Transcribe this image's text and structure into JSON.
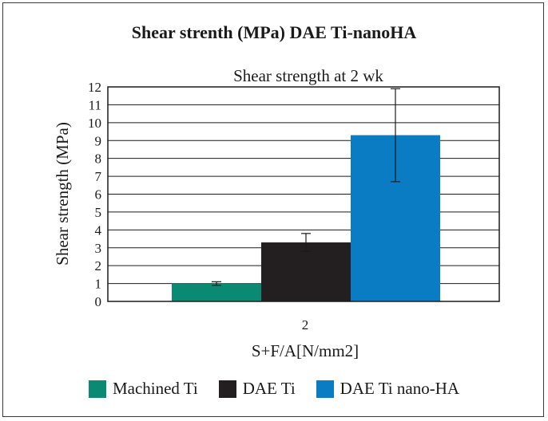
{
  "page": {
    "heading": "Shear strenth (MPa) DAE Ti-nanoHA"
  },
  "colors": {
    "machined": "#0a8a72",
    "dae": "#231f20",
    "nanoha": "#0a7cc4"
  },
  "chart_data": {
    "type": "bar",
    "title": "Shear strength at 2 wk",
    "xlabel": "S+F/A[N/mm2]",
    "ylabel": "Shear strength (MPa)",
    "ylim": [
      0,
      12
    ],
    "yticks": [
      "0",
      "1",
      "2",
      "3",
      "4",
      "5",
      "6",
      "7",
      "8",
      "9",
      "10",
      "11",
      "12"
    ],
    "categories": [
      "2"
    ],
    "grid": true,
    "legend_position": "bottom",
    "series": [
      {
        "name": "Machined Ti",
        "values": [
          1.0
        ],
        "error": [
          0.1
        ],
        "color_key": "machined"
      },
      {
        "name": "DAE Ti",
        "values": [
          3.3
        ],
        "error": [
          0.5
        ],
        "color_key": "dae"
      },
      {
        "name": "DAE Ti nano-HA",
        "values": [
          9.3
        ],
        "error": [
          2.6
        ],
        "color_key": "nanoha"
      }
    ]
  }
}
